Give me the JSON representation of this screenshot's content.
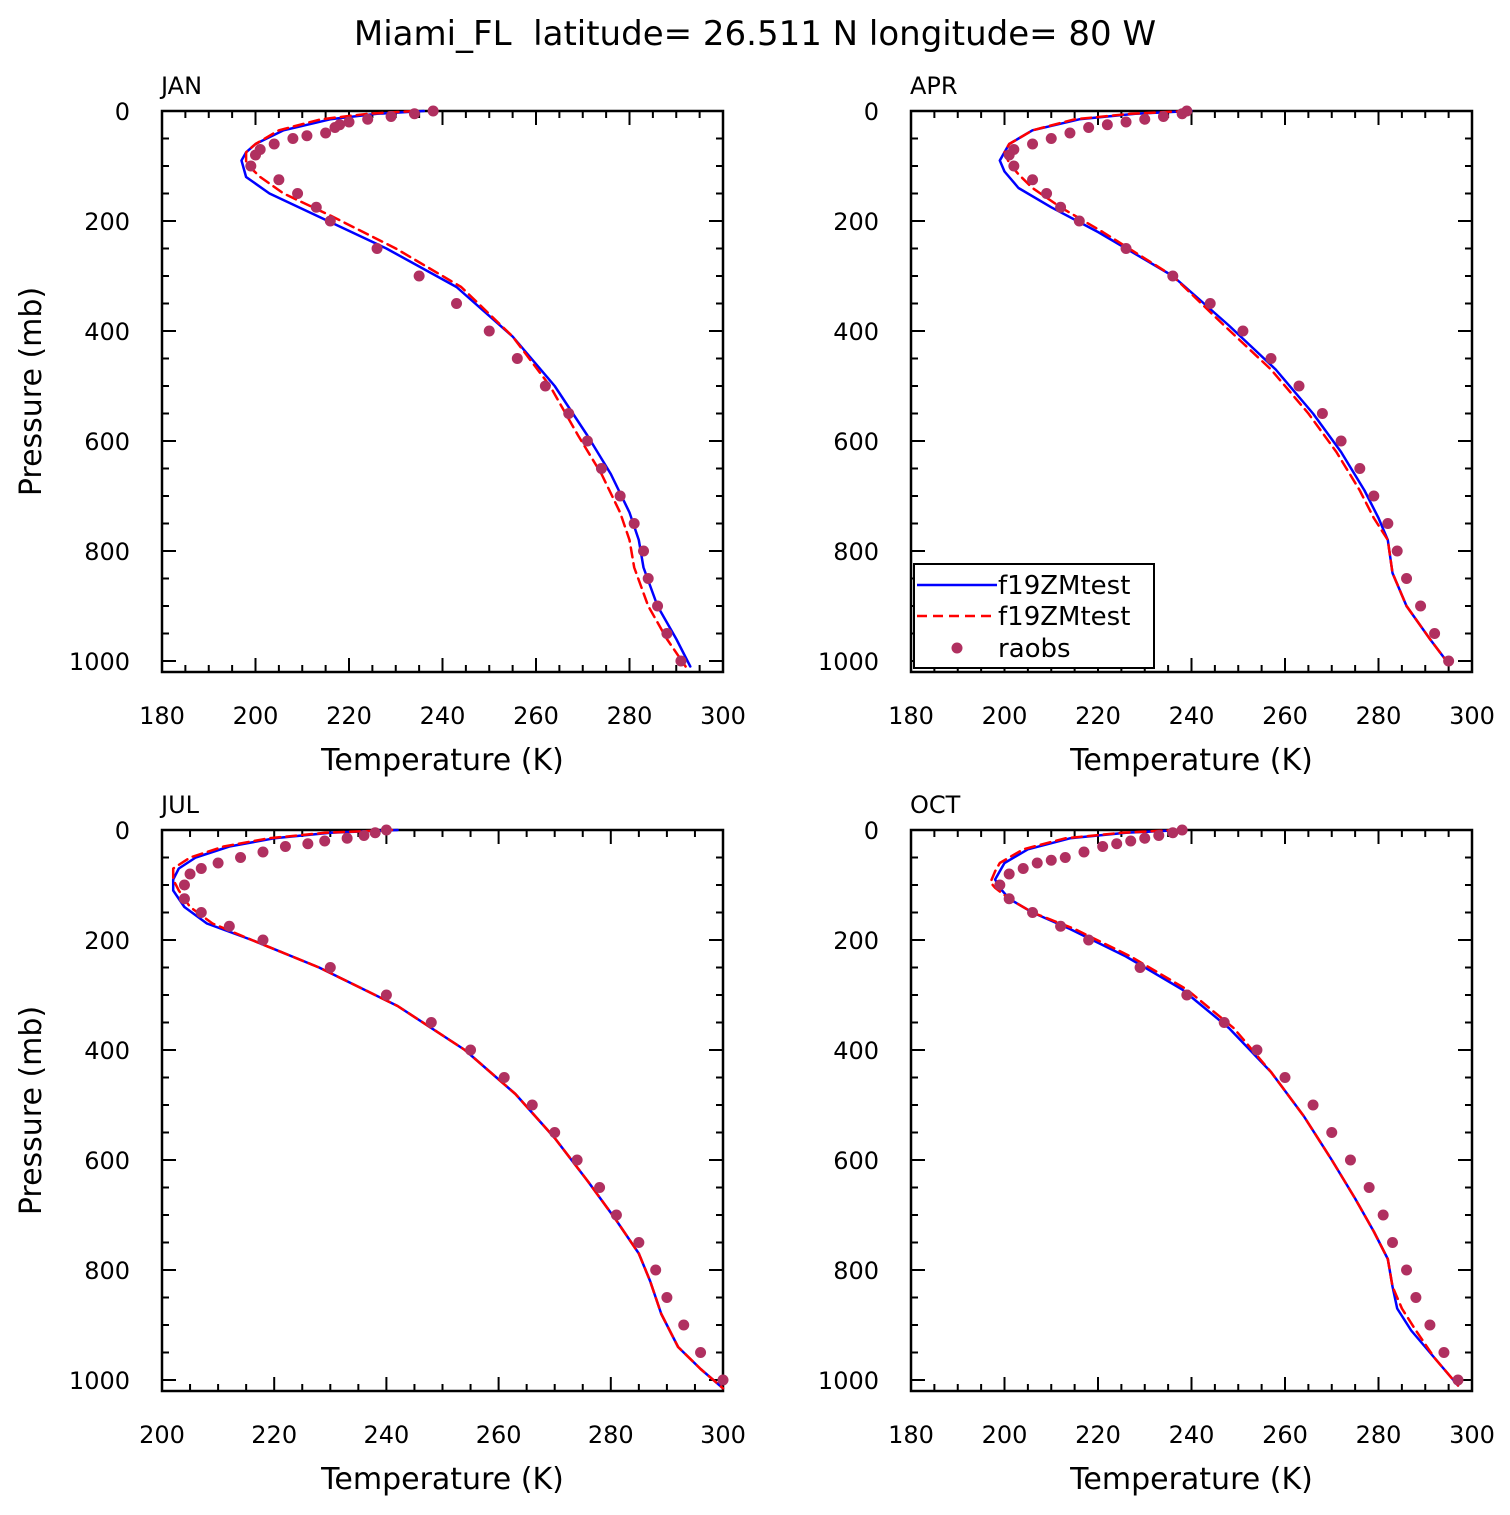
{
  "page": {
    "title": "Miami_FL  latitude= 26.511 N longitude= 80 W"
  },
  "colors": {
    "model_solid": "#0000ff",
    "model_dashed": "#ff0000",
    "obs": "#b03060",
    "axis": "#000000"
  },
  "legend": {
    "panel": "APR",
    "entries": [
      {
        "label": "f19ZMtest",
        "style": "solid-blue"
      },
      {
        "label": "f19ZMtest",
        "style": "dashed-red"
      },
      {
        "label": "raobs",
        "style": "dot"
      }
    ]
  },
  "chart_data": [
    {
      "type": "line",
      "panel": "JAN",
      "title": "JAN",
      "xlabel": "Temperature (K)",
      "ylabel": "Pressure (mb)",
      "xlim": [
        180,
        300
      ],
      "ylim": [
        1020,
        0
      ],
      "xticks": [
        180,
        200,
        220,
        240,
        260,
        280,
        300
      ],
      "yticks": [
        0,
        200,
        400,
        600,
        800,
        1000
      ],
      "series": [
        {
          "name": "f19ZMtest",
          "style": "solid",
          "x": [
            236,
            226,
            216,
            206,
            200,
            198,
            197,
            198,
            203,
            213,
            228,
            243,
            255,
            264,
            271,
            276,
            280,
            282,
            283,
            286,
            290,
            293
          ],
          "y": [
            0,
            5,
            15,
            35,
            60,
            75,
            90,
            120,
            150,
            190,
            250,
            320,
            410,
            500,
            590,
            660,
            730,
            780,
            830,
            900,
            960,
            1010
          ]
        },
        {
          "name": "f19ZMtest",
          "style": "dashed",
          "x": [
            234,
            224,
            214,
            205,
            200,
            198,
            198,
            201,
            206,
            216,
            230,
            244,
            255,
            263,
            269,
            274,
            278,
            280,
            281,
            284,
            288,
            292
          ],
          "y": [
            0,
            5,
            15,
            35,
            60,
            75,
            95,
            120,
            150,
            190,
            250,
            320,
            410,
            500,
            590,
            660,
            730,
            780,
            830,
            900,
            960,
            1010
          ]
        },
        {
          "name": "raobs",
          "style": "dots",
          "x": [
            238,
            234,
            229,
            224,
            220,
            218,
            217,
            215,
            211,
            208,
            204,
            201,
            200,
            199,
            205,
            209,
            213,
            216,
            226,
            235,
            243,
            250,
            256,
            262,
            267,
            271,
            274,
            278,
            281,
            283,
            284,
            286,
            288,
            291
          ],
          "y": [
            0,
            5,
            10,
            15,
            20,
            25,
            30,
            40,
            45,
            50,
            60,
            70,
            80,
            100,
            125,
            150,
            175,
            200,
            250,
            300,
            350,
            400,
            450,
            500,
            550,
            600,
            650,
            700,
            750,
            800,
            850,
            900,
            950,
            1000
          ]
        }
      ]
    },
    {
      "type": "line",
      "panel": "APR",
      "title": "APR",
      "xlabel": "Temperature (K)",
      "ylabel": "",
      "xlim": [
        180,
        300
      ],
      "ylim": [
        1020,
        0
      ],
      "xticks": [
        180,
        200,
        220,
        240,
        260,
        280,
        300
      ],
      "yticks": [
        0,
        200,
        400,
        600,
        800,
        1000
      ],
      "series": [
        {
          "name": "f19ZMtest",
          "style": "solid",
          "x": [
            240,
            228,
            216,
            206,
            201,
            200,
            199,
            200,
            203,
            210,
            220,
            236,
            248,
            258,
            266,
            272,
            277,
            280,
            282,
            283,
            286,
            291,
            295
          ],
          "y": [
            0,
            5,
            15,
            35,
            60,
            75,
            90,
            110,
            140,
            175,
            220,
            300,
            390,
            470,
            550,
            620,
            690,
            740,
            780,
            840,
            900,
            960,
            1005
          ]
        },
        {
          "name": "f19ZMtest",
          "style": "dashed",
          "x": [
            239,
            227,
            215,
            206,
            201,
            200,
            201,
            203,
            206,
            212,
            221,
            236,
            247,
            257,
            265,
            271,
            276,
            279,
            282,
            283,
            286,
            291,
            295
          ],
          "y": [
            0,
            5,
            15,
            35,
            60,
            75,
            95,
            115,
            140,
            175,
            220,
            300,
            390,
            470,
            550,
            620,
            690,
            740,
            780,
            840,
            900,
            960,
            1005
          ]
        },
        {
          "name": "raobs",
          "style": "dots",
          "x": [
            239,
            238,
            234,
            230,
            226,
            222,
            218,
            214,
            210,
            206,
            202,
            201,
            202,
            206,
            209,
            212,
            216,
            226,
            236,
            244,
            251,
            257,
            263,
            268,
            272,
            276,
            279,
            282,
            284,
            286,
            289,
            292,
            295
          ],
          "y": [
            0,
            5,
            10,
            15,
            20,
            25,
            30,
            40,
            50,
            60,
            70,
            80,
            100,
            125,
            150,
            175,
            200,
            250,
            300,
            350,
            400,
            450,
            500,
            550,
            600,
            650,
            700,
            750,
            800,
            850,
            900,
            950,
            1000
          ]
        }
      ]
    },
    {
      "type": "line",
      "panel": "JUL",
      "title": "JUL",
      "xlabel": "Temperature (K)",
      "ylabel": "Pressure (mb)",
      "xlim": [
        200,
        300
      ],
      "ylim": [
        1020,
        0
      ],
      "xticks": [
        200,
        220,
        240,
        260,
        280,
        300
      ],
      "yticks": [
        0,
        200,
        400,
        600,
        800,
        1000
      ],
      "series": [
        {
          "name": "f19ZMtest",
          "style": "solid",
          "x": [
            242,
            230,
            220,
            212,
            206,
            203,
            202,
            202,
            204,
            208,
            216,
            228,
            242,
            254,
            263,
            270,
            276,
            281,
            285,
            287,
            289,
            292,
            296,
            300
          ],
          "y": [
            0,
            5,
            15,
            30,
            50,
            70,
            90,
            110,
            140,
            170,
            200,
            250,
            320,
            400,
            480,
            560,
            640,
            710,
            770,
            820,
            880,
            940,
            980,
            1015
          ]
        },
        {
          "name": "f19ZMtest",
          "style": "dashed",
          "x": [
            241,
            229,
            219,
            211,
            205,
            202,
            202,
            203,
            205,
            209,
            216,
            228,
            242,
            254,
            263,
            270,
            276,
            281,
            285,
            287,
            289,
            292,
            296,
            300
          ],
          "y": [
            0,
            5,
            15,
            30,
            50,
            70,
            90,
            110,
            140,
            170,
            200,
            250,
            320,
            400,
            480,
            560,
            640,
            710,
            770,
            820,
            880,
            940,
            980,
            1015
          ]
        },
        {
          "name": "raobs",
          "style": "dots",
          "x": [
            240,
            238,
            236,
            233,
            229,
            226,
            222,
            218,
            214,
            210,
            207,
            205,
            204,
            204,
            207,
            212,
            218,
            230,
            240,
            248,
            255,
            261,
            266,
            270,
            274,
            278,
            281,
            285,
            288,
            290,
            293,
            296,
            300
          ],
          "y": [
            0,
            5,
            10,
            15,
            20,
            25,
            30,
            40,
            50,
            60,
            70,
            80,
            100,
            125,
            150,
            175,
            200,
            250,
            300,
            350,
            400,
            450,
            500,
            550,
            600,
            650,
            700,
            750,
            800,
            850,
            900,
            950,
            1000
          ]
        }
      ]
    },
    {
      "type": "line",
      "panel": "OCT",
      "title": "OCT",
      "xlabel": "Temperature (K)",
      "ylabel": "",
      "xlim": [
        180,
        300
      ],
      "ylim": [
        1020,
        0
      ],
      "xticks": [
        180,
        200,
        220,
        240,
        260,
        280,
        300
      ],
      "yticks": [
        0,
        200,
        400,
        600,
        800,
        1000
      ],
      "series": [
        {
          "name": "f19ZMtest",
          "style": "solid",
          "x": [
            238,
            226,
            214,
            205,
            200,
            199,
            198,
            199,
            201,
            206,
            214,
            226,
            238,
            248,
            257,
            264,
            270,
            275,
            279,
            282,
            283,
            284,
            287,
            292,
            297
          ],
          "y": [
            0,
            5,
            15,
            35,
            60,
            75,
            90,
            105,
            125,
            150,
            180,
            230,
            290,
            360,
            440,
            520,
            600,
            670,
            730,
            780,
            830,
            870,
            910,
            960,
            1010
          ]
        },
        {
          "name": "f19ZMtest",
          "style": "dashed",
          "x": [
            237,
            225,
            213,
            204,
            199,
            198,
            197,
            198,
            201,
            206,
            215,
            227,
            239,
            249,
            257,
            264,
            270,
            275,
            279,
            282,
            283,
            285,
            288,
            292,
            297
          ],
          "y": [
            0,
            5,
            15,
            35,
            60,
            75,
            95,
            105,
            125,
            150,
            180,
            230,
            290,
            360,
            440,
            520,
            600,
            670,
            730,
            780,
            830,
            870,
            910,
            960,
            1010
          ]
        },
        {
          "name": "raobs",
          "style": "dots",
          "x": [
            238,
            236,
            233,
            230,
            227,
            224,
            221,
            217,
            213,
            210,
            207,
            204,
            201,
            199,
            201,
            206,
            212,
            218,
            229,
            239,
            247,
            254,
            260,
            266,
            270,
            274,
            278,
            281,
            283,
            286,
            288,
            291,
            294,
            297
          ],
          "y": [
            0,
            5,
            10,
            15,
            20,
            25,
            30,
            40,
            50,
            55,
            60,
            70,
            80,
            100,
            125,
            150,
            175,
            200,
            250,
            300,
            350,
            400,
            450,
            500,
            550,
            600,
            650,
            700,
            750,
            800,
            850,
            900,
            950,
            1000
          ]
        }
      ]
    }
  ]
}
